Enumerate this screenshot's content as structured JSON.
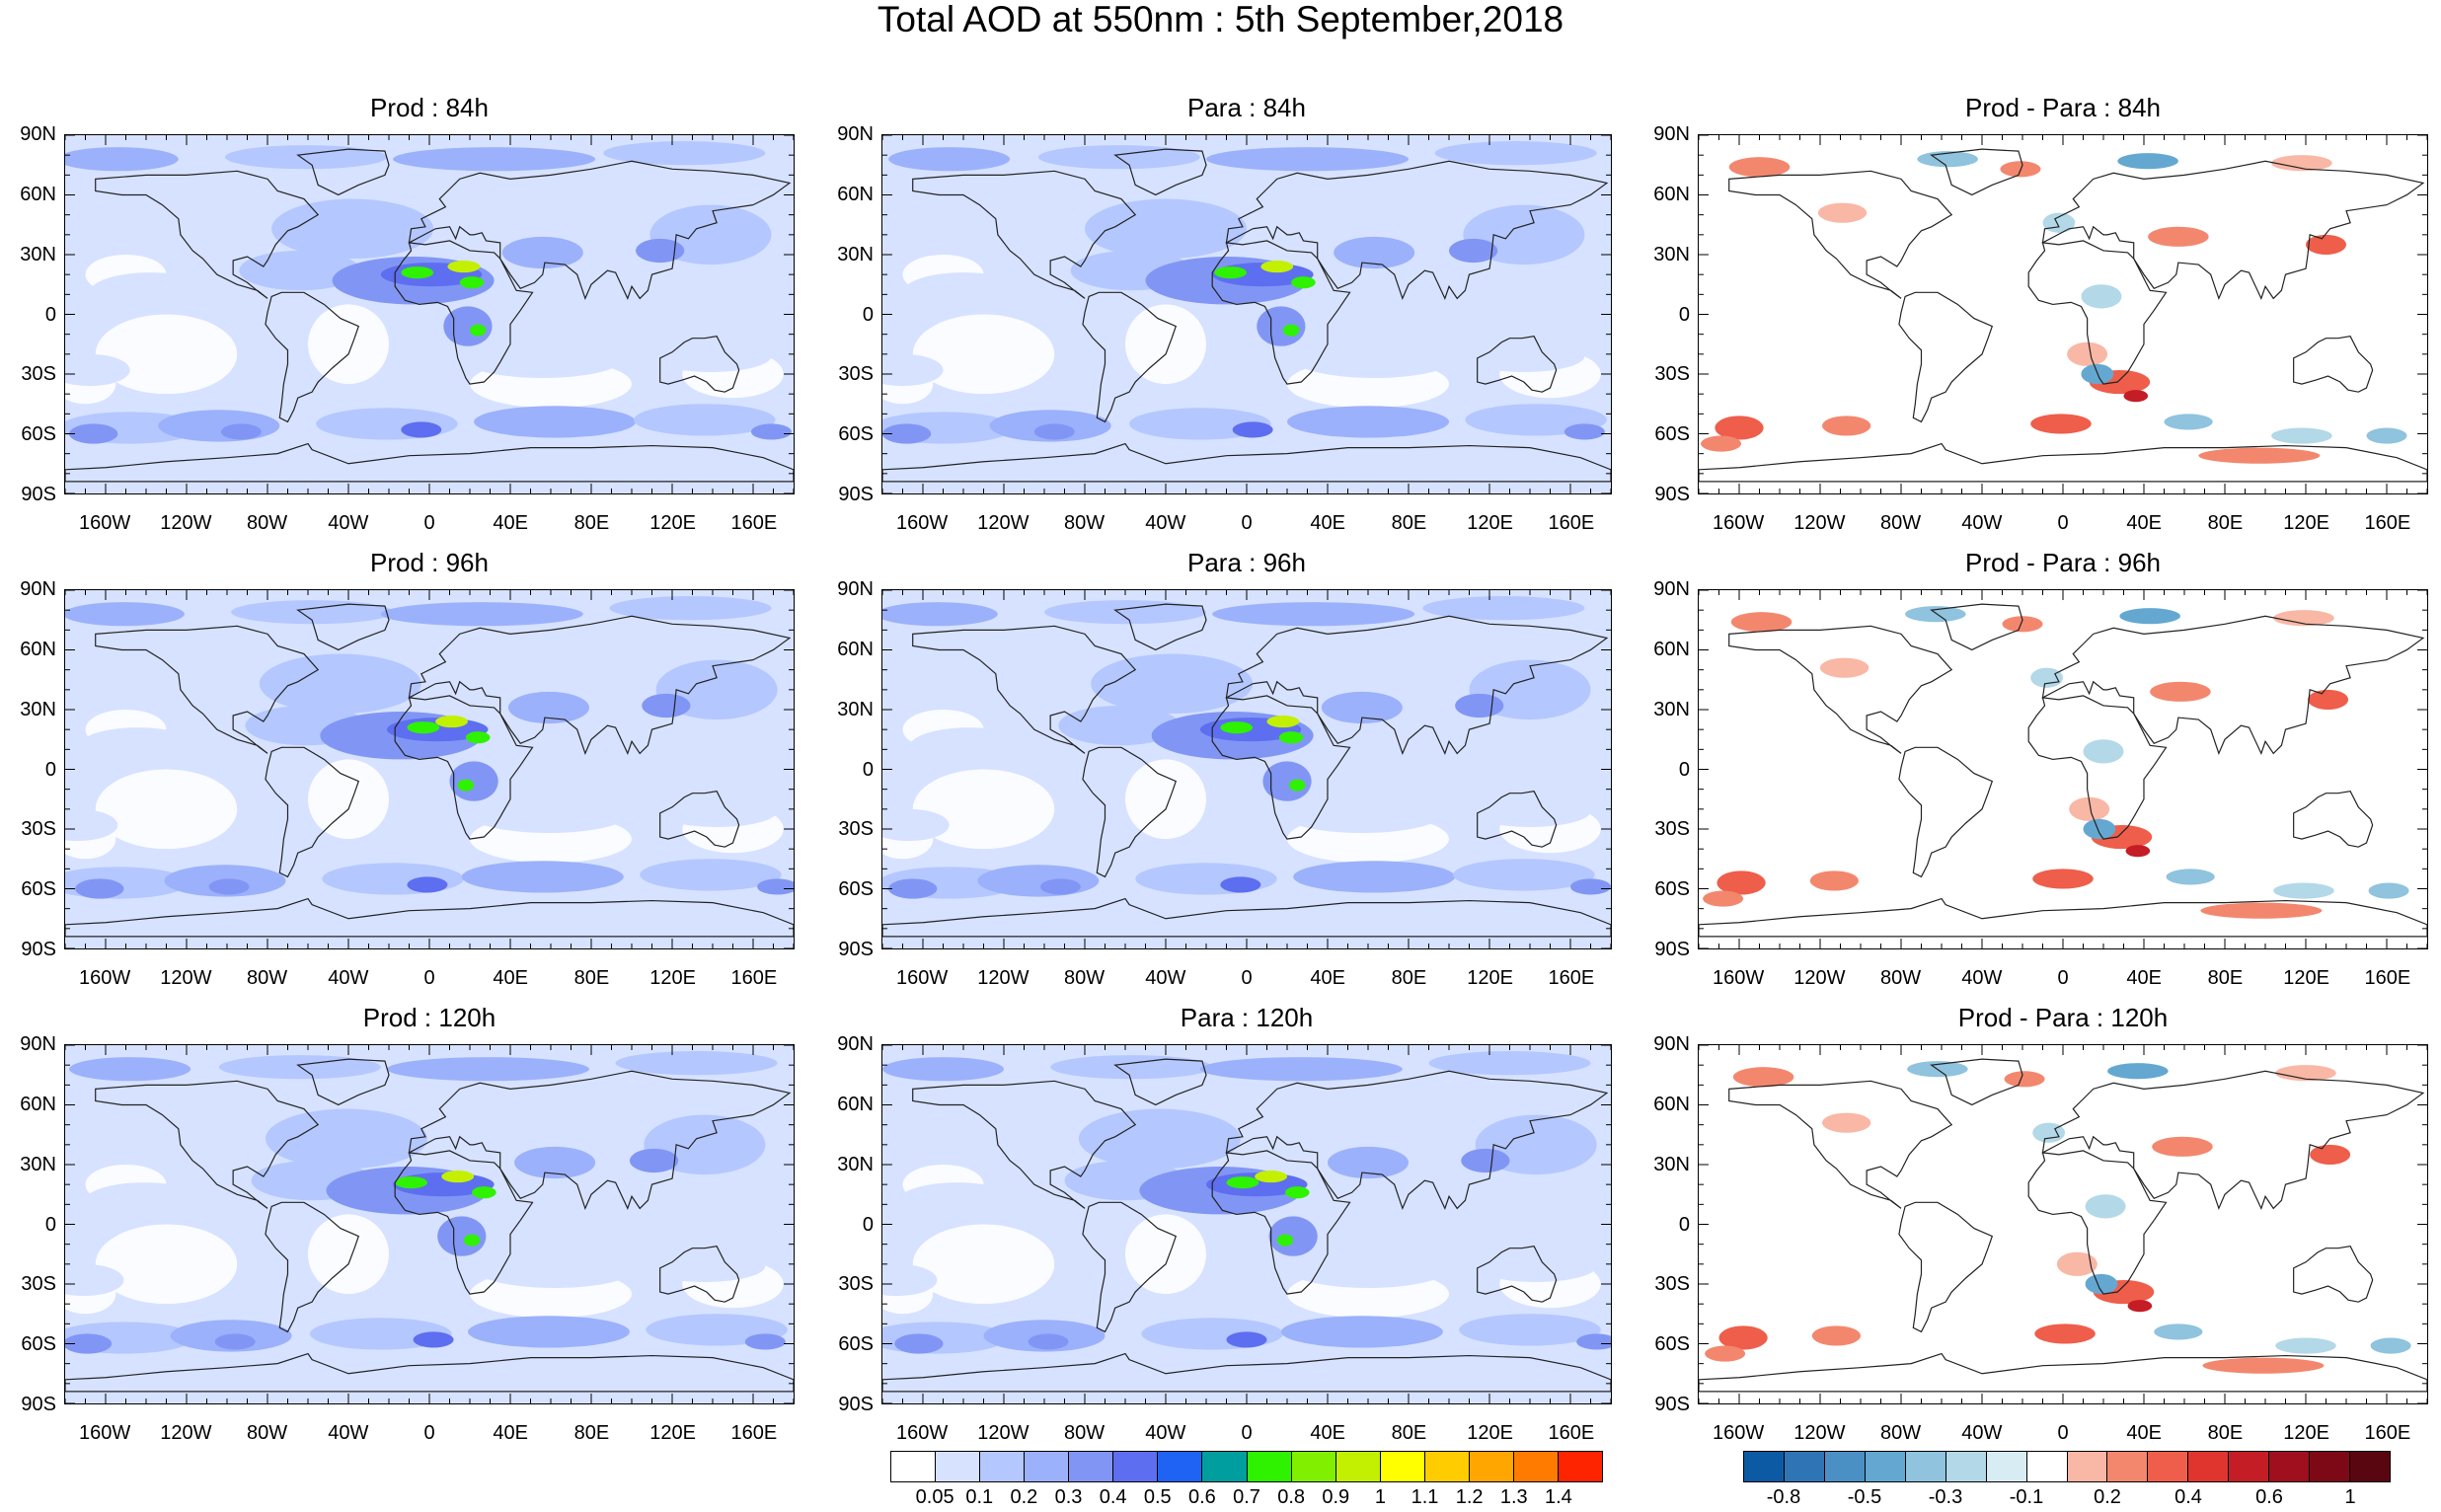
{
  "title": "Total AOD at 550nm : 5th September,2018",
  "panels": [
    {
      "title": "Prod : 84h",
      "type": "aod"
    },
    {
      "title": "Para : 84h",
      "type": "aod"
    },
    {
      "title": "Prod - Para : 84h",
      "type": "diff"
    },
    {
      "title": "Prod : 96h",
      "type": "aod"
    },
    {
      "title": "Para : 96h",
      "type": "aod"
    },
    {
      "title": "Prod - Para : 96h",
      "type": "diff"
    },
    {
      "title": "Prod : 120h",
      "type": "aod"
    },
    {
      "title": "Para : 120h",
      "type": "aod"
    },
    {
      "title": "Prod - Para : 120h",
      "type": "diff"
    }
  ],
  "axes": {
    "lat_labels": [
      "90N",
      "60N",
      "30N",
      "0",
      "30S",
      "60S",
      "90S"
    ],
    "lat_values": [
      90,
      60,
      30,
      0,
      -30,
      -60,
      -90
    ],
    "lon_labels": [
      "160W",
      "120W",
      "80W",
      "40W",
      "0",
      "40E",
      "80E",
      "120E",
      "160E"
    ],
    "lon_values": [
      -160,
      -120,
      -80,
      -40,
      0,
      40,
      80,
      120,
      160
    ],
    "lon_range": [
      -180,
      180
    ],
    "lat_range": [
      -90,
      90
    ]
  },
  "colorbars": {
    "aod": {
      "colors": [
        "#ffffff",
        "#d6e2ff",
        "#b4c7ff",
        "#9cb1fb",
        "#8196f4",
        "#5e6ef0",
        "#1f63f4",
        "#009e9e",
        "#2ef200",
        "#80f000",
        "#c2f000",
        "#ffff00",
        "#ffcc00",
        "#ffa600",
        "#ff7b00",
        "#ff2400"
      ],
      "labels": [
        "0.05",
        "0.1",
        "0.2",
        "0.3",
        "0.4",
        "0.5",
        "0.6",
        "0.7",
        "0.8",
        "0.9",
        "1",
        "1.1",
        "1.2",
        "1.3",
        "1.4"
      ]
    },
    "diff": {
      "colors": [
        "#0c5aa4",
        "#2f75b6",
        "#4b90c5",
        "#64a8d1",
        "#8fc3de",
        "#b3d8e8",
        "#d8ecf4",
        "#ffffff",
        "#f9b7a5",
        "#f3876e",
        "#ee5e4b",
        "#e0352f",
        "#c41d25",
        "#a00f1e",
        "#7c0915",
        "#5a0610"
      ],
      "labels": [
        "-0.8",
        "-0.5",
        "-0.3",
        "-0.1",
        "0.2",
        "0.4",
        "0.6",
        "1"
      ],
      "label_positions": [
        1,
        3,
        5,
        7,
        9,
        11,
        13,
        15
      ]
    }
  }
}
